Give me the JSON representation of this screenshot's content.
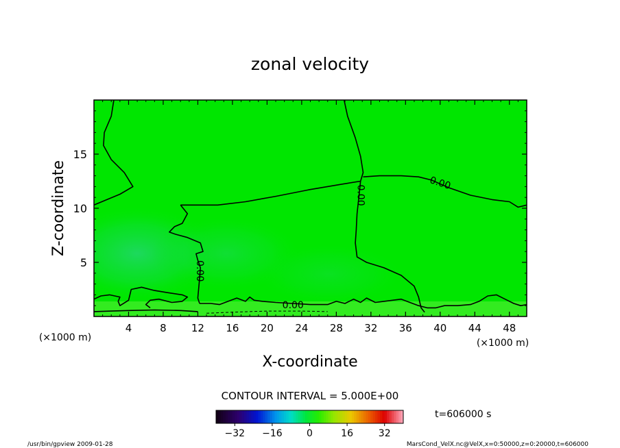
{
  "chart_data": {
    "type": "contour",
    "title": "zonal velocity",
    "xlabel": "X-coordinate",
    "ylabel": "Z-coordinate",
    "x_unit": "(×1000 m)",
    "y_unit": "(×1000 m)",
    "xlim": [
      0,
      50
    ],
    "ylim": [
      0,
      20
    ],
    "x_ticks": [
      4,
      8,
      12,
      16,
      20,
      24,
      28,
      32,
      36,
      40,
      44,
      48
    ],
    "y_ticks": [
      5,
      10,
      15
    ],
    "contour_interval_label": "CONTOUR INTERVAL = 5.000E+00",
    "contour_labels": [
      {
        "text": "0.00",
        "x": 40.0,
        "z": 12.3,
        "angle": 18
      },
      {
        "text": "0.00",
        "x": 30.8,
        "z": 11.2,
        "angle": 90
      },
      {
        "text": "0.00",
        "x": 12.2,
        "z": 4.2,
        "angle": 90
      },
      {
        "text": "0.00",
        "x": 23.0,
        "z": 1.0,
        "angle": 0
      }
    ],
    "contours": [
      {
        "level": 0,
        "points": [
          [
            2.3,
            20
          ],
          [
            2.0,
            18.5
          ],
          [
            1.2,
            17.0
          ],
          [
            1.1,
            15.8
          ],
          [
            2.0,
            14.5
          ],
          [
            3.5,
            13.3
          ],
          [
            4.5,
            12.0
          ],
          [
            3.0,
            11.3
          ],
          [
            1.5,
            10.8
          ],
          [
            0,
            10.3
          ]
        ]
      },
      {
        "level": 0,
        "points": [
          [
            28.9,
            20
          ],
          [
            29.3,
            18.5
          ],
          [
            30.2,
            16.5
          ],
          [
            30.8,
            14.8
          ],
          [
            31.1,
            13.3
          ],
          [
            30.8,
            12.5
          ]
        ]
      },
      {
        "level": 0,
        "points": [
          [
            30.8,
            12.5
          ],
          [
            28.5,
            12.2
          ],
          [
            24.8,
            11.7
          ],
          [
            21.0,
            11.1
          ],
          [
            17.5,
            10.6
          ],
          [
            14.3,
            10.3
          ],
          [
            10.0,
            10.3
          ]
        ]
      },
      {
        "level": 0,
        "points": [
          [
            30.8,
            12.5
          ],
          [
            30.6,
            11.0
          ],
          [
            30.4,
            9.5
          ],
          [
            30.3,
            8.0
          ],
          [
            30.2,
            6.8
          ],
          [
            30.4,
            5.5
          ],
          [
            31.5,
            5.0
          ],
          [
            33.5,
            4.5
          ],
          [
            35.5,
            3.8
          ],
          [
            37.0,
            2.8
          ],
          [
            37.5,
            1.8
          ],
          [
            37.8,
            0.8
          ],
          [
            38.2,
            0.4
          ]
        ]
      },
      {
        "level": 0,
        "points": [
          [
            31.1,
            12.9
          ],
          [
            33.0,
            13.0
          ],
          [
            35.5,
            13.0
          ],
          [
            37.5,
            12.9
          ],
          [
            39.0,
            12.6
          ],
          [
            41.0,
            11.9
          ],
          [
            43.5,
            11.2
          ],
          [
            46.0,
            10.8
          ],
          [
            48.0,
            10.6
          ],
          [
            49.0,
            10.1
          ],
          [
            50,
            10.3
          ]
        ]
      },
      {
        "level": 0,
        "points": [
          [
            10.0,
            10.3
          ],
          [
            10.8,
            9.5
          ],
          [
            10.2,
            8.6
          ],
          [
            9.3,
            8.3
          ],
          [
            8.7,
            7.8
          ],
          [
            9.4,
            7.6
          ],
          [
            10.8,
            7.3
          ],
          [
            12.3,
            6.8
          ],
          [
            12.6,
            6.0
          ],
          [
            11.8,
            5.8
          ],
          [
            12.0,
            5.2
          ],
          [
            12.3,
            4.5
          ],
          [
            12.2,
            3.5
          ],
          [
            12.1,
            2.6
          ],
          [
            12.0,
            1.7
          ],
          [
            12.2,
            1.2
          ]
        ]
      },
      {
        "level": 0,
        "points": [
          [
            0,
            1.6
          ],
          [
            0.8,
            1.9
          ],
          [
            1.8,
            2.0
          ],
          [
            3.0,
            1.8
          ],
          [
            2.8,
            1.4
          ],
          [
            3.0,
            1.0
          ],
          [
            4.0,
            1.5
          ],
          [
            4.3,
            2.5
          ],
          [
            5.5,
            2.7
          ],
          [
            7.0,
            2.4
          ],
          [
            8.5,
            2.2
          ],
          [
            10.2,
            2.0
          ],
          [
            10.8,
            1.8
          ],
          [
            10.2,
            1.4
          ],
          [
            9.0,
            1.3
          ],
          [
            7.5,
            1.6
          ],
          [
            6.5,
            1.5
          ],
          [
            6.0,
            1.1
          ],
          [
            6.5,
            0.8
          ]
        ]
      },
      {
        "level": 0,
        "points": [
          [
            12.2,
            1.2
          ],
          [
            13.5,
            1.2
          ],
          [
            14.5,
            1.1
          ],
          [
            15.5,
            1.4
          ],
          [
            16.5,
            1.7
          ],
          [
            17.5,
            1.4
          ],
          [
            18.0,
            1.8
          ],
          [
            18.5,
            1.5
          ],
          [
            19.5,
            1.4
          ],
          [
            21.0,
            1.3
          ],
          [
            23.0,
            1.2
          ],
          [
            25.0,
            1.1
          ],
          [
            27.0,
            1.1
          ],
          [
            28.0,
            1.4
          ],
          [
            29.0,
            1.2
          ],
          [
            30.0,
            1.6
          ],
          [
            30.8,
            1.3
          ],
          [
            31.5,
            1.7
          ],
          [
            32.5,
            1.3
          ],
          [
            33.5,
            1.4
          ],
          [
            34.5,
            1.5
          ],
          [
            35.5,
            1.6
          ],
          [
            36.5,
            1.3
          ],
          [
            37.5,
            1.0
          ],
          [
            38.5,
            0.8
          ],
          [
            39.5,
            0.8
          ],
          [
            40.5,
            1.0
          ],
          [
            42.0,
            1.0
          ],
          [
            43.5,
            1.1
          ],
          [
            44.5,
            1.4
          ],
          [
            45.5,
            1.9
          ],
          [
            46.5,
            2.0
          ],
          [
            47.5,
            1.6
          ],
          [
            48.5,
            1.2
          ],
          [
            49.3,
            1.0
          ],
          [
            50,
            1.1
          ]
        ]
      },
      {
        "level": 0,
        "points": [
          [
            0,
            0.45
          ],
          [
            2,
            0.5
          ],
          [
            4,
            0.55
          ],
          [
            7,
            0.6
          ],
          [
            10,
            0.55
          ],
          [
            12,
            0.45
          ]
        ]
      }
    ],
    "dashed_contours": [
      {
        "level": -5,
        "points": [
          [
            13.0,
            0.3
          ],
          [
            16.0,
            0.4
          ],
          [
            20.0,
            0.5
          ],
          [
            24.0,
            0.5
          ],
          [
            27.0,
            0.45
          ]
        ]
      }
    ],
    "colorbar": {
      "ticks": [
        -32,
        -16,
        0,
        16,
        32
      ],
      "range": [
        -40,
        40
      ]
    },
    "annotations": {
      "time": "t=606000 s",
      "footer_left": "/usr/bin/gpview   2009-01-28",
      "footer_right": "MarsCond_VelX.nc@VelX,x=0:50000,z=0:20000,t=606000"
    },
    "colors": {
      "field": "#00e600",
      "negative_tint": "#21d46a",
      "near_surface": "#7cf24a"
    }
  }
}
